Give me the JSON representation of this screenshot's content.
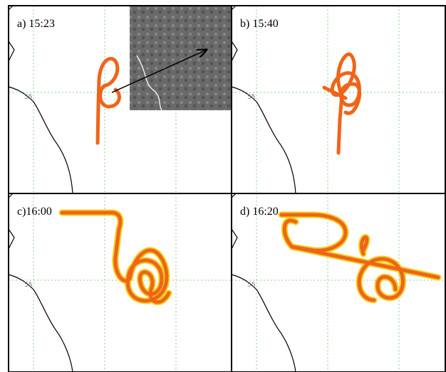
{
  "panels": [
    {
      "label": "a) 15:23",
      "coast_label": "55"
    },
    {
      "label": "b) 15:40",
      "coast_label": "55"
    },
    {
      "label": "c)16:00",
      "coast_label": "55"
    },
    {
      "label": "d) 16:20",
      "coast_label": "55"
    }
  ]
}
